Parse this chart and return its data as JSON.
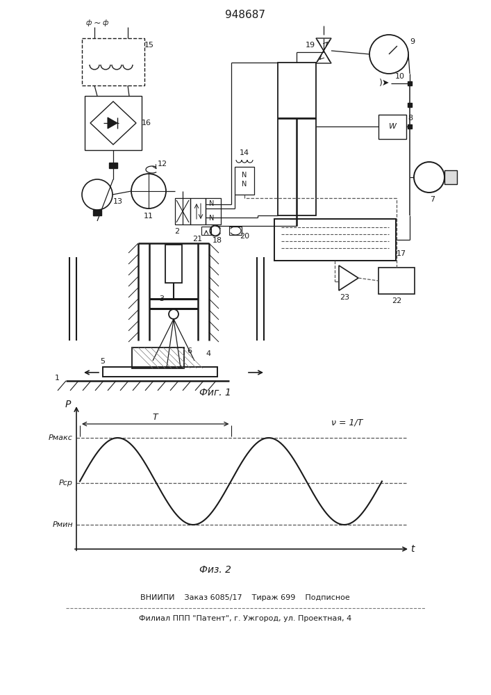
{
  "title_text": "948687",
  "fig1_label": "Фиг. 1",
  "fig2_label": "Физ. 2",
  "footer_line1": "ВНИИПИ    Заказ 6085/17    Тираж 699    Подписное",
  "footer_line2": "Филиал ППП \"Патент\", г. Ужгород, ул. Проектная, 4",
  "bg_color": "#ffffff",
  "line_color": "#1a1a1a",
  "p_max_label": "Pмакс",
  "p_avg_label": "Pср",
  "p_min_label": "Pмин",
  "freq_label": "ν=1/T",
  "period_label": "T"
}
